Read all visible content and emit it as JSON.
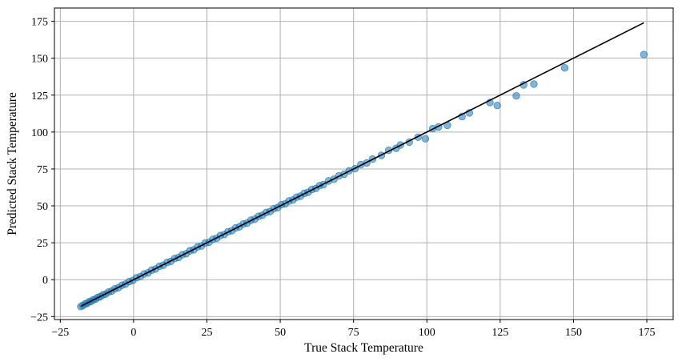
{
  "chart_data": {
    "type": "scatter",
    "xlabel": "True Stack Temperature",
    "ylabel": "Predicted Stack Temperature",
    "xlim": [
      -27,
      184
    ],
    "ylim": [
      -27,
      184
    ],
    "xticks": [
      -25,
      0,
      25,
      50,
      75,
      100,
      125,
      150,
      175
    ],
    "yticks": [
      -25,
      0,
      25,
      50,
      75,
      100,
      125,
      150,
      175
    ],
    "grid": true,
    "point_color": "#1f77b4",
    "line_color": "#000000",
    "reference_line": {
      "x": [
        -18,
        174
      ],
      "y": [
        -18,
        174
      ]
    },
    "series": [
      {
        "x": [
          -18,
          -17.3,
          -16.6,
          -15.9,
          -15.2,
          -14.5,
          -13.8,
          -13,
          -12.2,
          -11.4,
          -10.5,
          -9.6,
          -8.6,
          -7.5,
          -6.4,
          -5.2,
          -4,
          -2.8,
          -1.5,
          -0.3,
          1,
          2.3,
          3.6,
          4.9,
          6.2,
          7.5,
          8.8,
          10.1,
          11.4,
          12.7,
          14,
          15.3,
          16.6,
          17.9,
          19.2,
          20.5,
          21.8,
          23.1,
          24.4,
          25.7,
          27,
          28.3,
          29.6,
          30.9,
          32.2,
          33.5,
          34.8,
          36.1,
          37.4,
          38.7,
          40,
          41.3,
          42.6,
          43.9,
          45.2,
          46.5,
          47.8,
          49.1,
          50.4,
          51.7,
          53,
          54.3,
          55.6,
          56.9,
          58.2,
          59.5,
          60.8,
          62.1,
          63.4,
          64.7,
          66.5,
          68.3,
          70,
          71.8,
          73.5,
          75.5,
          77.5,
          79.5,
          81.5,
          84.5,
          87,
          89.5,
          91,
          94,
          97,
          99.5,
          102,
          104,
          107,
          112,
          114.5,
          121.5,
          124,
          130.5,
          133,
          136.5,
          147,
          174
        ],
        "y": [
          -18.2,
          -17.5,
          -16.4,
          -16.1,
          -15,
          -14.7,
          -13.6,
          -13.2,
          -12,
          -11.6,
          -10.3,
          -9.8,
          -8.4,
          -7.7,
          -6.2,
          -5.4,
          -3.8,
          -3,
          -1.3,
          -0.5,
          1.3,
          2.1,
          3.9,
          4.6,
          6.5,
          7.3,
          9.1,
          9.8,
          11.7,
          12.4,
          14.3,
          15,
          16.9,
          17.6,
          19.6,
          20.2,
          22.2,
          22.8,
          24.8,
          25.4,
          27.3,
          28,
          29.9,
          30.6,
          32.5,
          33.2,
          35.1,
          35.8,
          37.7,
          38.4,
          40.3,
          41,
          42.9,
          43.6,
          45.5,
          46.2,
          48.1,
          48.8,
          50.8,
          51.4,
          53.3,
          54,
          55.9,
          56.6,
          58.5,
          59.2,
          61.1,
          61.8,
          63.7,
          64.4,
          66.9,
          68,
          70.3,
          71.5,
          73.8,
          75.2,
          77.9,
          79.1,
          81.7,
          84.2,
          87.6,
          89,
          91.3,
          93.2,
          96.5,
          95.5,
          102.3,
          103.5,
          104.6,
          110.5,
          113,
          120,
          118,
          124.5,
          132,
          132.5,
          143.5,
          152.5
        ]
      }
    ]
  }
}
